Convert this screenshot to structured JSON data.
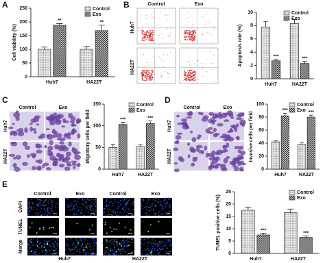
{
  "figure": {
    "panel_labels": [
      "A",
      "B",
      "C",
      "D",
      "E"
    ],
    "flow": {
      "columns": [
        "Control",
        "Exo"
      ],
      "rows": [
        "Huh7",
        "HA22T"
      ]
    },
    "migration": {
      "columns": [
        "Control",
        "Exo"
      ],
      "rows": [
        "Huh7",
        "HA22T"
      ]
    },
    "invasion": {
      "columns": [
        "Control",
        "Exo"
      ],
      "rows": [
        "Huh7",
        "HA22T"
      ]
    },
    "tunel": {
      "columns": [
        "Control",
        "Exo",
        "Control",
        "Exo"
      ],
      "rows": [
        "DAPI",
        "TUNEL",
        "Merge"
      ],
      "groups": [
        "Huh7",
        "HA22T"
      ]
    }
  },
  "chart_data": [
    {
      "type": "bar",
      "y_label": "Cell viability (%)",
      "categories": [
        "Huh7",
        "HA22T"
      ],
      "ylim": [
        0,
        250
      ],
      "yticks": [
        0,
        50,
        100,
        150,
        200,
        250
      ],
      "legend": "top-right",
      "series": [
        {
          "name": "Control",
          "color": "#e6e6e6",
          "pattern": "dots",
          "values": [
            100,
            100
          ],
          "errors": [
            8,
            10
          ]
        },
        {
          "name": "Exo",
          "color": "#d0d0d0",
          "pattern": "checks",
          "values": [
            188,
            168
          ],
          "errors": [
            6,
            20
          ],
          "significance": [
            "**",
            "**"
          ]
        }
      ]
    },
    {
      "type": "bar",
      "y_label": "Apoptosis rate (%)",
      "categories": [
        "Huh7",
        "HA22T"
      ],
      "ylim": [
        0,
        10
      ],
      "yticks": [
        0,
        2,
        4,
        6,
        8,
        10
      ],
      "legend": "top-right",
      "series": [
        {
          "name": "Control",
          "color": "#e6e6e6",
          "pattern": "dots",
          "values": [
            7.8,
            8.3
          ],
          "errors": [
            0.8,
            0.6
          ]
        },
        {
          "name": "Exo",
          "color": "#d0d0d0",
          "pattern": "checks",
          "values": [
            2.7,
            2.3
          ],
          "errors": [
            0.2,
            0.3
          ],
          "significance": [
            "***",
            "***"
          ]
        }
      ]
    },
    {
      "type": "bar",
      "y_label": "Migratory cells per field",
      "categories": [
        "Huh7",
        "HA22T"
      ],
      "ylim": [
        0,
        150
      ],
      "yticks": [
        0,
        50,
        100,
        150
      ],
      "legend": "top-right",
      "series": [
        {
          "name": "Control",
          "color": "#e6e6e6",
          "pattern": "dots",
          "values": [
            50,
            52
          ],
          "errors": [
            7,
            4
          ]
        },
        {
          "name": "Exo",
          "color": "#d0d0d0",
          "pattern": "checks",
          "values": [
            103,
            105
          ],
          "errors": [
            5,
            6
          ],
          "significance": [
            "***",
            "***"
          ]
        }
      ]
    },
    {
      "type": "bar",
      "y_label": "Invasive cells per field",
      "categories": [
        "Huh7",
        "HA22T"
      ],
      "ylim": [
        0,
        100
      ],
      "yticks": [
        0,
        20,
        40,
        60,
        80,
        100
      ],
      "legend": "top-right",
      "series": [
        {
          "name": "Control",
          "color": "#e6e6e6",
          "pattern": "dots",
          "values": [
            42,
            38
          ],
          "errors": [
            2,
            3
          ]
        },
        {
          "name": "Exo",
          "color": "#d0d0d0",
          "pattern": "checks",
          "values": [
            82,
            80
          ],
          "errors": [
            4,
            3
          ],
          "significance": [
            "***",
            "***"
          ]
        }
      ]
    },
    {
      "type": "bar",
      "y_label": "TUNEL positive cells (%)",
      "categories": [
        "Huh7",
        "HA22T"
      ],
      "ylim": [
        0,
        25
      ],
      "yticks": [
        0,
        5,
        10,
        15,
        20,
        25
      ],
      "legend": "top-right",
      "series": [
        {
          "name": "Control",
          "color": "#e6e6e6",
          "pattern": "dots",
          "values": [
            17.5,
            16.5
          ],
          "errors": [
            1.3,
            1.5
          ]
        },
        {
          "name": "Exo",
          "color": "#d0d0d0",
          "pattern": "checks",
          "values": [
            7.5,
            6.5
          ],
          "errors": [
            0.7,
            0.6
          ],
          "significance": [
            "***",
            "***"
          ]
        }
      ]
    }
  ]
}
